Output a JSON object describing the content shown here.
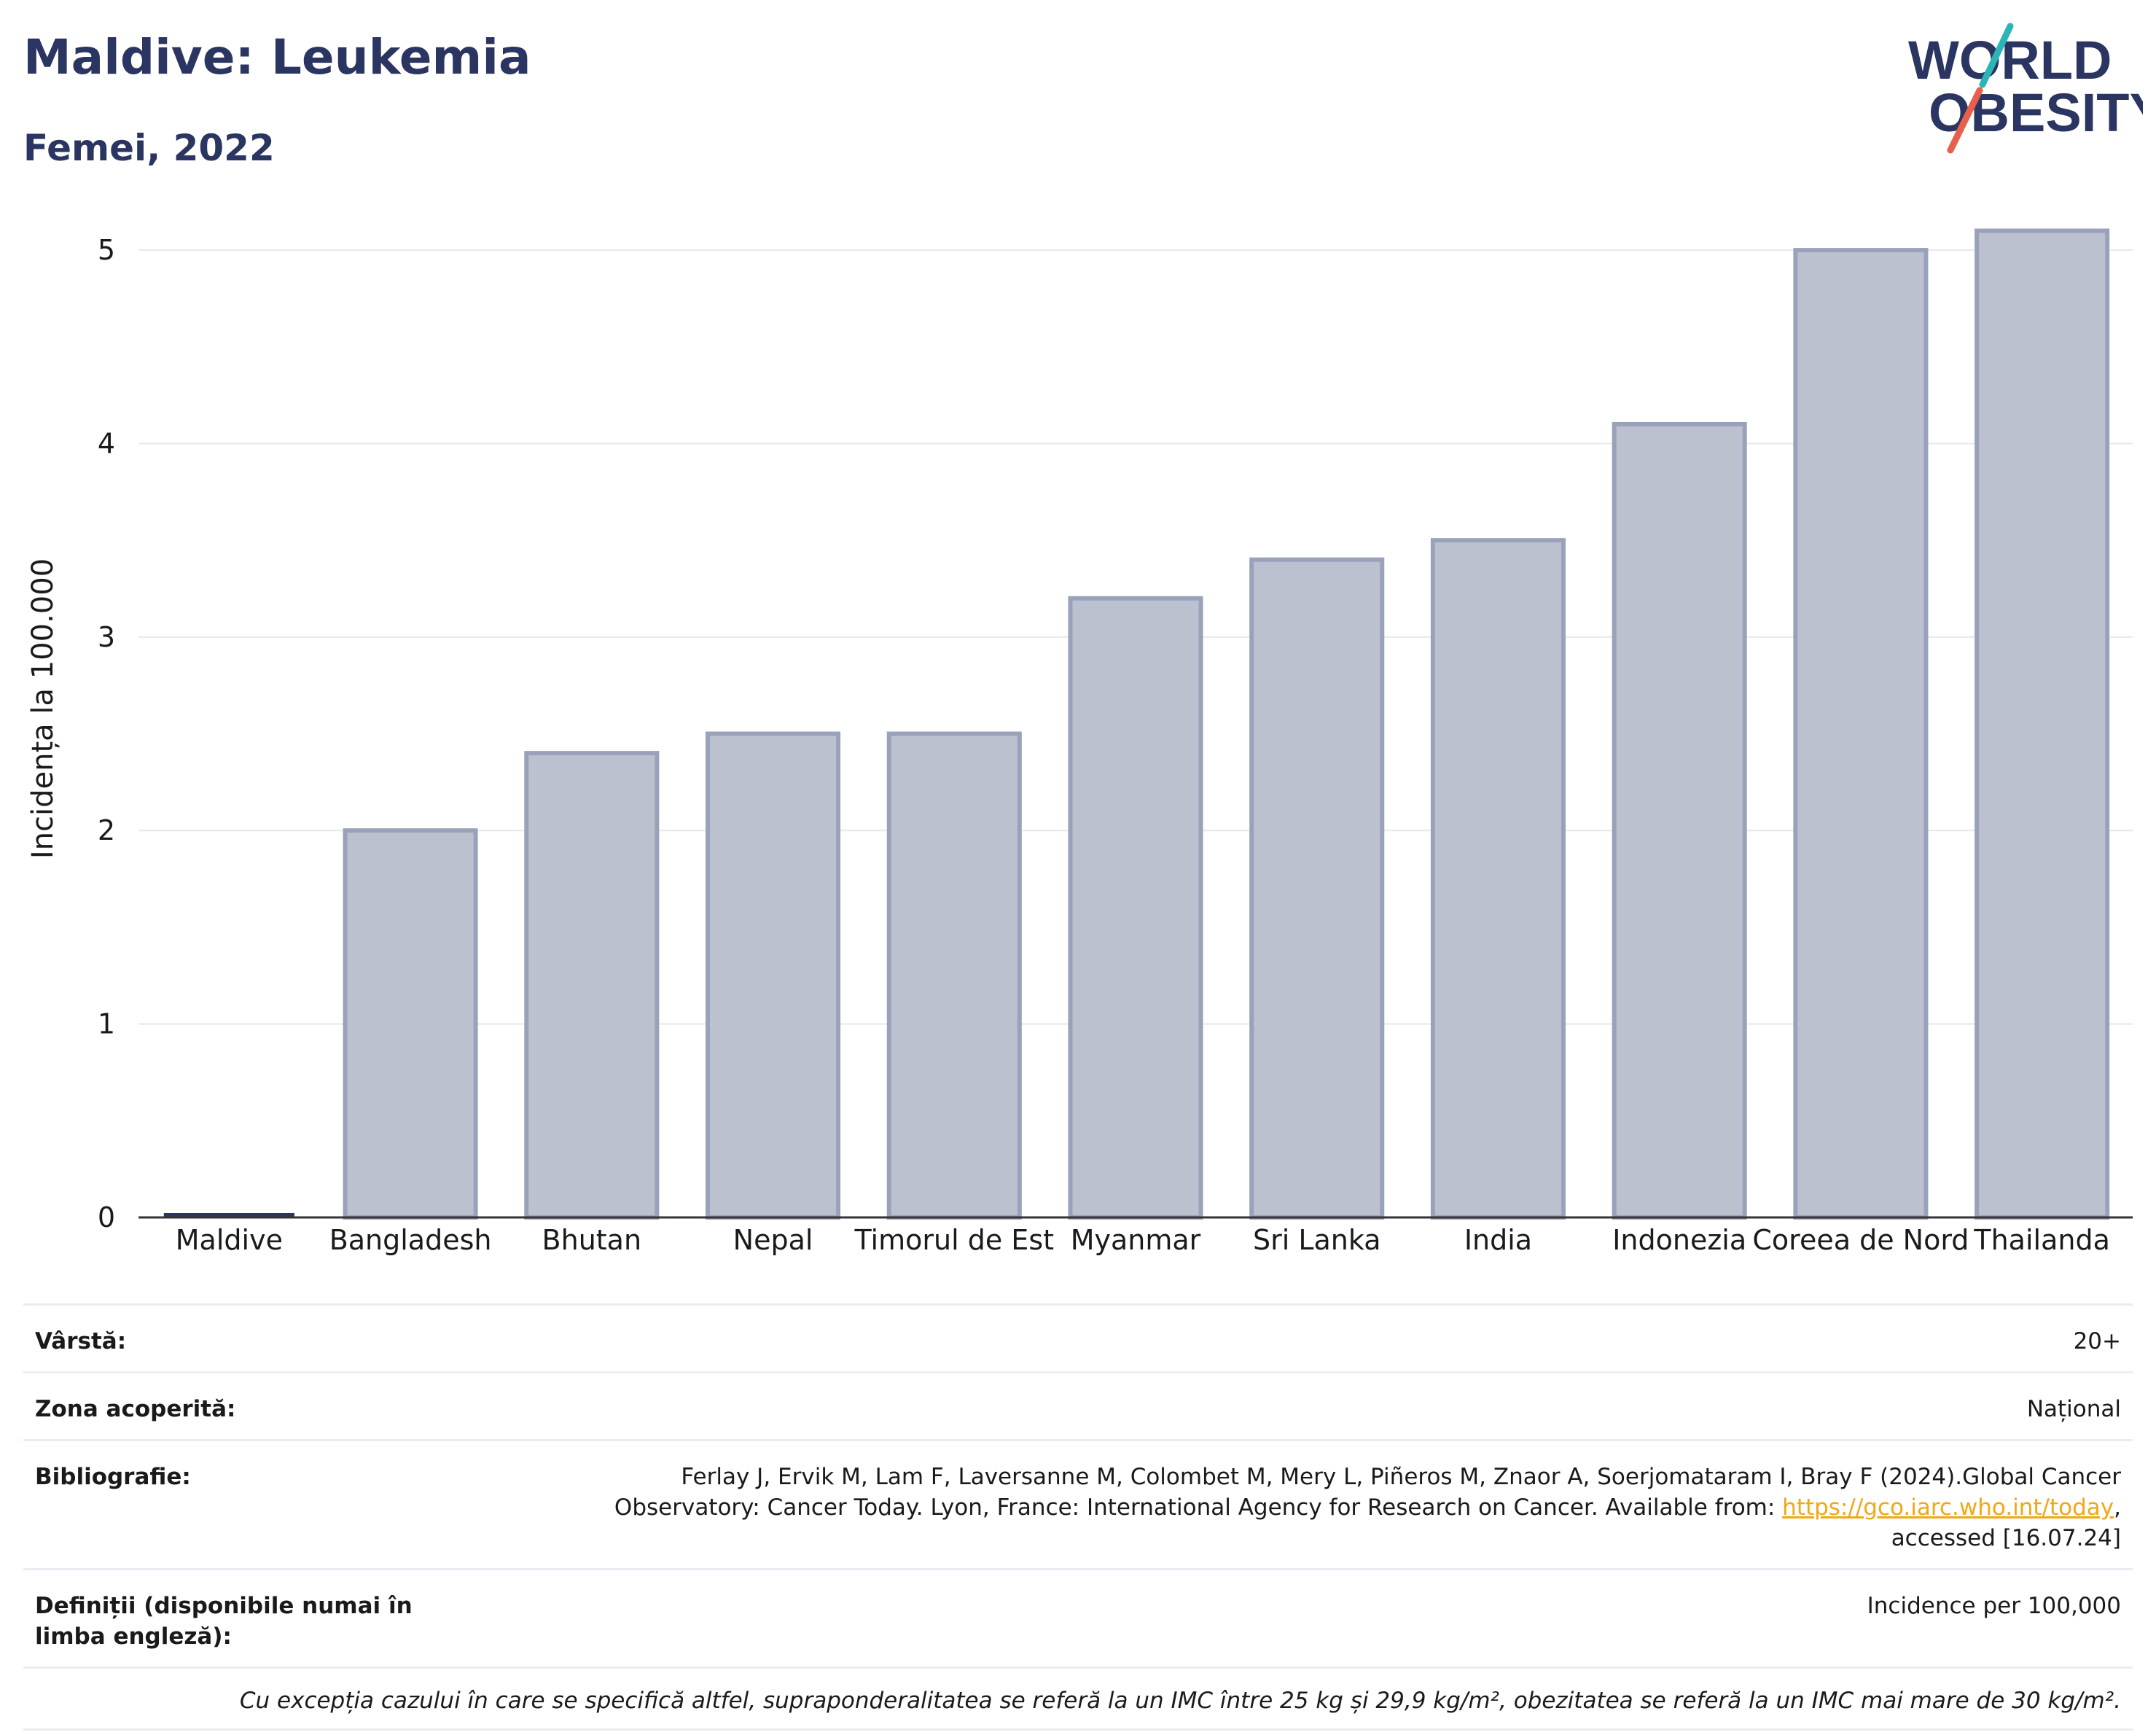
{
  "header": {
    "title": "Maldive: Leukemia",
    "subtitle": "Femei, 2022"
  },
  "logo": {
    "line1": "WORLD",
    "line2": "OBESITY",
    "colors": {
      "text": "#2b3561",
      "slash_teal": "#2cb5b5",
      "slash_coral": "#e8604c"
    }
  },
  "chart_data": {
    "type": "bar",
    "title": "Maldive: Leukemia",
    "subtitle": "Femei, 2022",
    "xlabel": "",
    "ylabel": "Incidența la 100.000",
    "ylim": [
      0,
      5.2
    ],
    "yticks": [
      0,
      1,
      2,
      3,
      4,
      5
    ],
    "grid": true,
    "categories": [
      "Maldive",
      "Bangladesh",
      "Bhutan",
      "Nepal",
      "Timorul de Est",
      "Myanmar",
      "Sri Lanka",
      "India",
      "Indonezia",
      "Coreea de Nord",
      "Thailanda"
    ],
    "values": [
      0,
      2.0,
      2.4,
      2.5,
      2.5,
      3.2,
      3.4,
      3.5,
      4.1,
      5.0,
      5.1
    ],
    "highlight": "Maldive",
    "colors": {
      "bar_fill": "#bcc1d0",
      "bar_stroke": "#9aa2bb",
      "highlight": "#2b3561",
      "grid": "#e6e8ee",
      "axis": "#333333"
    }
  },
  "info": {
    "age_label": "Vârstă:",
    "age_value": "20+",
    "zone_label": "Zona acoperită:",
    "zone_value": "Național",
    "biblio_label": "Bibliografie:",
    "biblio_text": "Ferlay J, Ervik M, Lam F, Laversanne M, Colombet M, Mery L, Piñeros M, Znaor A, Soerjomataram I, Bray F (2024).Global Cancer Observatory: Cancer Today. Lyon, France: International Agency for Research on Cancer. Available from: ",
    "biblio_link": "https://gco.iarc.who.int/today",
    "biblio_tail": ", accessed [16.07.24]",
    "def_label": "Definiții (disponibile numai în limba engleză):",
    "def_value": "Incidence per 100,000",
    "note": "Cu excepția cazului în care se specifică altfel, supraponderalitatea se referă la un IMC între 25 kg și 29,9 kg/m², obezitatea se referă la un IMC mai mare de 30 kg/m²."
  }
}
